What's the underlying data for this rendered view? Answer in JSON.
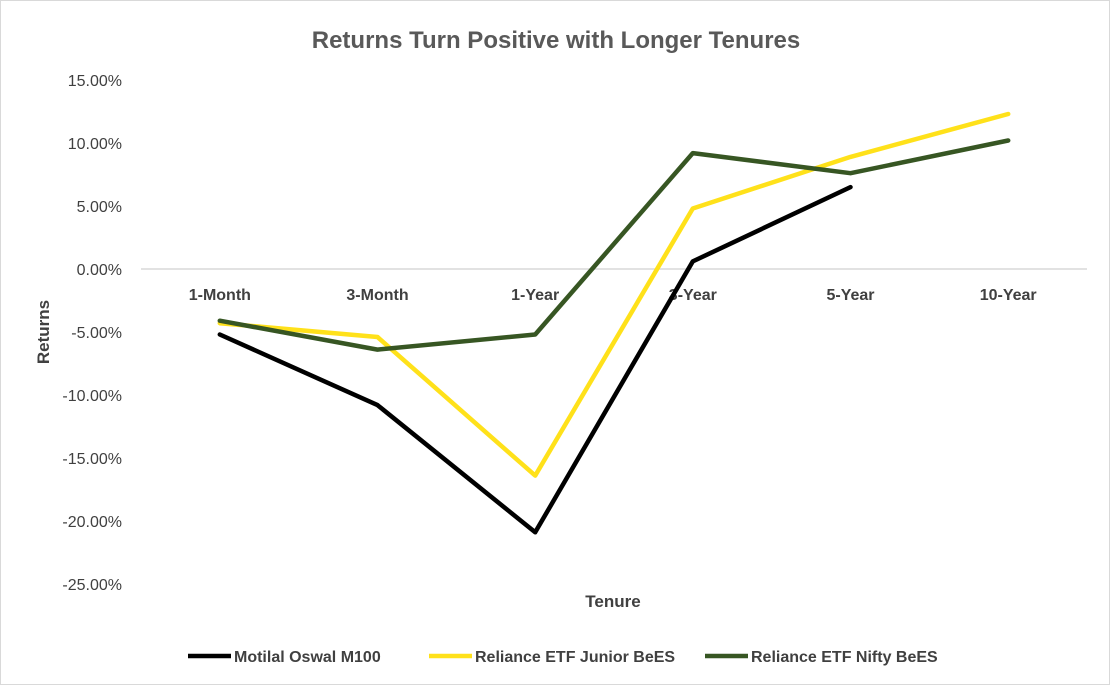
{
  "chart_data": {
    "type": "line",
    "title": "Returns Turn Positive with Longer Tenures",
    "xlabel": "Tenure",
    "ylabel": "Returns",
    "categories": [
      "1-Month",
      "3-Month",
      "1-Year",
      "3-Year",
      "5-Year",
      "10-Year"
    ],
    "ylim": [
      -25,
      15
    ],
    "yticks": [
      "15.00%",
      "10.00%",
      "5.00%",
      "0.00%",
      "-5.00%",
      "-10.00%",
      "-15.00%",
      "-20.00%",
      "-25.00%"
    ],
    "ytick_values": [
      15,
      10,
      5,
      0,
      -5,
      -10,
      -15,
      -20,
      -25
    ],
    "grid": false,
    "legend_position": "bottom",
    "series": [
      {
        "name": "Motilal Oswal M100",
        "color": "#000000",
        "values": [
          -5.2,
          -10.8,
          -20.9,
          0.6,
          6.5,
          null
        ]
      },
      {
        "name": "Reliance ETF Junior BeES",
        "color": "#FFE11A",
        "values": [
          -4.3,
          -5.4,
          -16.4,
          4.8,
          8.9,
          12.3
        ]
      },
      {
        "name": "Reliance ETF Nifty BeES",
        "color": "#375623",
        "values": [
          -4.1,
          -6.4,
          -5.2,
          9.2,
          7.6,
          10.2
        ]
      }
    ]
  }
}
